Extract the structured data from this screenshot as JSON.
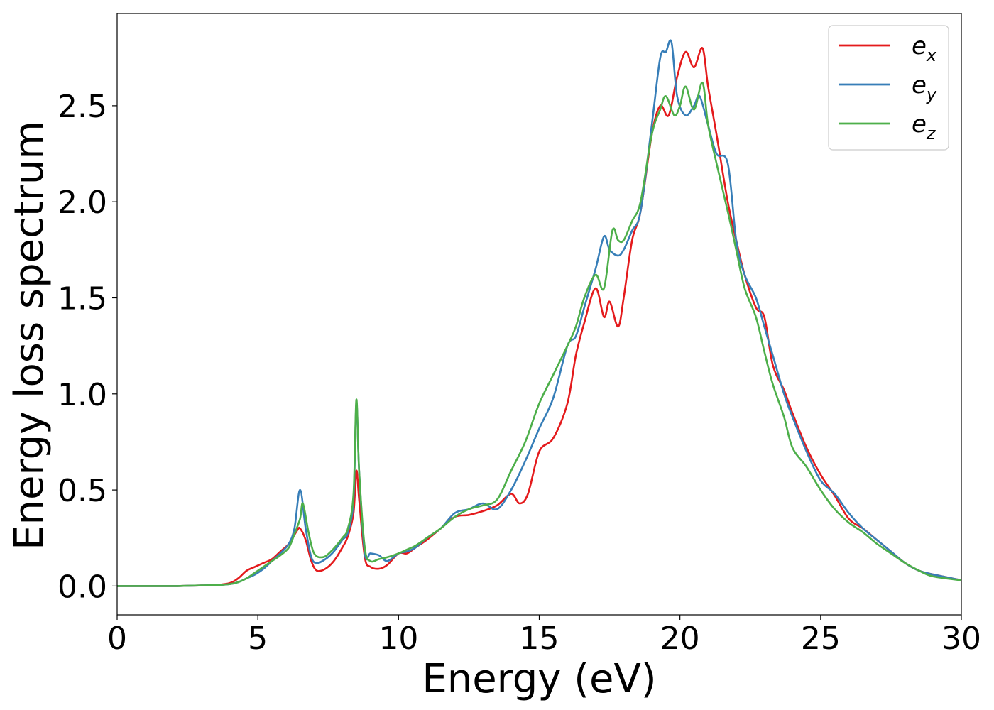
{
  "chart_data": {
    "type": "line",
    "title": "",
    "xlabel": "Energy (eV)",
    "ylabel": "Energy loss spectrum",
    "xlim": [
      0,
      30
    ],
    "ylim": [
      -0.15,
      2.98
    ],
    "xticks": [
      0,
      5,
      10,
      15,
      20,
      25,
      30
    ],
    "xtick_labels": [
      "0",
      "5",
      "10",
      "15",
      "20",
      "25",
      "30"
    ],
    "yticks": [
      0.0,
      0.5,
      1.0,
      1.5,
      2.0,
      2.5
    ],
    "ytick_labels": [
      "0.0",
      "0.5",
      "1.0",
      "1.5",
      "2.0",
      "2.5"
    ],
    "grid": false,
    "legend_position": "top-right",
    "series": [
      {
        "name": "e_x",
        "label_base": "e",
        "label_sub": "x",
        "color": "#e41a1c",
        "x": [
          0,
          2,
          3,
          3.5,
          4,
          4.3,
          4.6,
          4.9,
          5.2,
          5.5,
          5.8,
          6.1,
          6.4,
          6.5,
          6.7,
          6.9,
          7.1,
          7.4,
          7.7,
          8.0,
          8.2,
          8.4,
          8.5,
          8.6,
          8.8,
          9.0,
          9.3,
          9.6,
          10.0,
          10.3,
          10.6,
          11.0,
          11.5,
          12.0,
          12.5,
          13.0,
          13.5,
          14.0,
          14.3,
          14.6,
          15.0,
          15.5,
          16.0,
          16.3,
          16.6,
          17.0,
          17.3,
          17.5,
          17.8,
          18.0,
          18.3,
          18.6,
          19.0,
          19.3,
          19.6,
          19.9,
          20.2,
          20.5,
          20.8,
          21.0,
          21.3,
          21.7,
          22.0,
          22.3,
          22.7,
          23.0,
          23.3,
          23.7,
          24.0,
          24.5,
          25.0,
          25.5,
          26.0,
          26.5,
          27.0,
          27.5,
          28.0,
          28.5,
          29.0,
          30.0
        ],
        "y": [
          0.0,
          0.0,
          0.003,
          0.005,
          0.015,
          0.04,
          0.08,
          0.1,
          0.12,
          0.14,
          0.18,
          0.22,
          0.29,
          0.3,
          0.24,
          0.13,
          0.08,
          0.09,
          0.13,
          0.2,
          0.26,
          0.38,
          0.6,
          0.45,
          0.15,
          0.1,
          0.09,
          0.11,
          0.17,
          0.17,
          0.2,
          0.24,
          0.3,
          0.36,
          0.37,
          0.39,
          0.42,
          0.48,
          0.43,
          0.48,
          0.7,
          0.77,
          0.95,
          1.2,
          1.37,
          1.55,
          1.4,
          1.48,
          1.35,
          1.5,
          1.8,
          1.95,
          2.35,
          2.5,
          2.45,
          2.65,
          2.78,
          2.7,
          2.8,
          2.6,
          2.35,
          2.0,
          1.8,
          1.62,
          1.45,
          1.4,
          1.15,
          1.02,
          0.9,
          0.72,
          0.58,
          0.47,
          0.35,
          0.3,
          0.24,
          0.18,
          0.12,
          0.08,
          0.06,
          0.03
        ]
      },
      {
        "name": "e_y",
        "label_base": "e",
        "label_sub": "y",
        "color": "#377eb8",
        "x": [
          0,
          2,
          3,
          3.5,
          4,
          4.3,
          4.6,
          4.9,
          5.2,
          5.5,
          5.8,
          6.1,
          6.3,
          6.5,
          6.7,
          6.9,
          7.1,
          7.4,
          7.7,
          8.0,
          8.2,
          8.4,
          8.5,
          8.6,
          8.8,
          9.0,
          9.3,
          9.6,
          10.0,
          10.3,
          10.6,
          11.0,
          11.5,
          12.0,
          12.5,
          13.0,
          13.5,
          14.0,
          14.5,
          15.0,
          15.5,
          16.0,
          16.3,
          16.6,
          17.0,
          17.3,
          17.5,
          17.8,
          18.0,
          18.3,
          18.6,
          19.0,
          19.3,
          19.5,
          19.7,
          19.9,
          20.2,
          20.5,
          20.7,
          21.0,
          21.3,
          21.7,
          22.0,
          22.3,
          22.7,
          23.0,
          23.3,
          23.7,
          24.0,
          24.5,
          25.0,
          25.5,
          26.0,
          26.5,
          27.0,
          27.5,
          28.0,
          28.5,
          29.0,
          30.0
        ],
        "y": [
          0.0,
          0.0,
          0.003,
          0.005,
          0.01,
          0.02,
          0.04,
          0.06,
          0.09,
          0.13,
          0.17,
          0.22,
          0.3,
          0.5,
          0.3,
          0.15,
          0.12,
          0.14,
          0.18,
          0.24,
          0.28,
          0.45,
          0.95,
          0.6,
          0.17,
          0.17,
          0.16,
          0.13,
          0.17,
          0.18,
          0.2,
          0.25,
          0.3,
          0.38,
          0.4,
          0.43,
          0.4,
          0.5,
          0.65,
          0.82,
          0.98,
          1.25,
          1.3,
          1.45,
          1.65,
          1.82,
          1.75,
          1.72,
          1.75,
          1.85,
          1.95,
          2.4,
          2.75,
          2.78,
          2.83,
          2.55,
          2.45,
          2.5,
          2.55,
          2.4,
          2.25,
          2.2,
          1.8,
          1.62,
          1.5,
          1.35,
          1.2,
          1.0,
          0.88,
          0.7,
          0.55,
          0.48,
          0.38,
          0.3,
          0.24,
          0.18,
          0.12,
          0.08,
          0.06,
          0.03
        ]
      },
      {
        "name": "e_z",
        "label_base": "e",
        "label_sub": "z",
        "color": "#4daf4a",
        "x": [
          0,
          2,
          3,
          3.5,
          4,
          4.3,
          4.6,
          4.9,
          5.2,
          5.5,
          5.8,
          6.1,
          6.3,
          6.5,
          6.6,
          6.8,
          7.0,
          7.3,
          7.6,
          8.0,
          8.2,
          8.4,
          8.5,
          8.6,
          8.8,
          9.0,
          9.3,
          9.6,
          10.0,
          10.3,
          10.6,
          11.0,
          11.5,
          12.0,
          12.5,
          13.0,
          13.5,
          14.0,
          14.5,
          15.0,
          15.5,
          16.0,
          16.3,
          16.6,
          17.0,
          17.3,
          17.6,
          17.8,
          18.0,
          18.3,
          18.6,
          19.0,
          19.3,
          19.5,
          19.8,
          20.0,
          20.2,
          20.5,
          20.8,
          21.0,
          21.3,
          21.7,
          22.0,
          22.3,
          22.7,
          23.0,
          23.3,
          23.7,
          24.0,
          24.5,
          25.0,
          25.5,
          26.0,
          26.5,
          27.0,
          27.5,
          28.0,
          28.5,
          29.0,
          30.0
        ],
        "y": [
          0.0,
          0.0,
          0.003,
          0.005,
          0.01,
          0.02,
          0.04,
          0.07,
          0.1,
          0.13,
          0.16,
          0.2,
          0.27,
          0.35,
          0.43,
          0.28,
          0.17,
          0.15,
          0.18,
          0.25,
          0.3,
          0.48,
          0.97,
          0.6,
          0.2,
          0.13,
          0.14,
          0.15,
          0.17,
          0.19,
          0.21,
          0.25,
          0.3,
          0.36,
          0.4,
          0.42,
          0.45,
          0.6,
          0.75,
          0.95,
          1.1,
          1.25,
          1.35,
          1.5,
          1.62,
          1.55,
          1.85,
          1.8,
          1.8,
          1.9,
          2.0,
          2.35,
          2.48,
          2.55,
          2.45,
          2.5,
          2.6,
          2.48,
          2.62,
          2.4,
          2.2,
          1.95,
          1.75,
          1.55,
          1.4,
          1.22,
          1.05,
          0.88,
          0.72,
          0.62,
          0.5,
          0.4,
          0.33,
          0.28,
          0.22,
          0.17,
          0.12,
          0.08,
          0.05,
          0.03
        ]
      }
    ]
  }
}
